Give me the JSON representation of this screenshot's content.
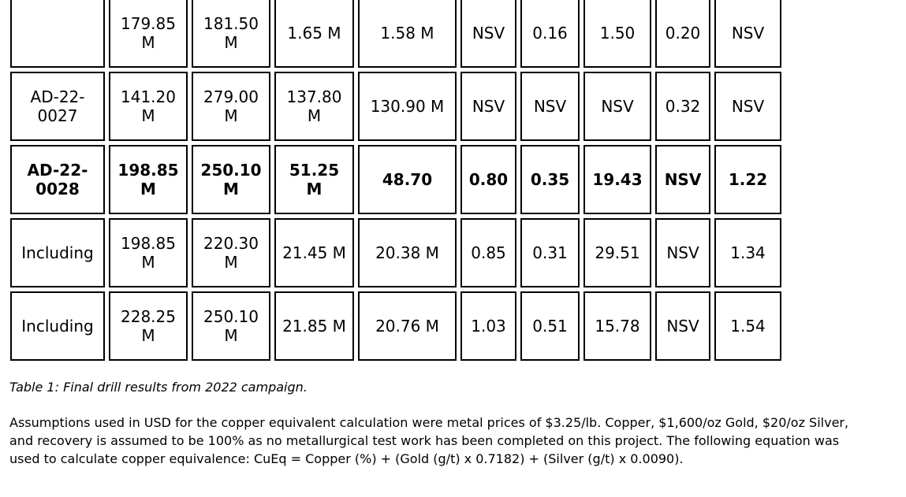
{
  "colors": {
    "text": "#000000",
    "border": "#000000",
    "background": "#ffffff"
  },
  "table": {
    "rows": [
      {
        "bold": false,
        "cells": [
          "",
          "179.85 M",
          "181.50 M",
          "1.65 M",
          "1.58 M",
          "NSV",
          "0.16",
          "1.50",
          "0.20",
          "NSV"
        ]
      },
      {
        "bold": false,
        "cells": [
          "AD-22-0027",
          "141.20 M",
          "279.00 M",
          "137.80 M",
          "130.90 M",
          "NSV",
          "NSV",
          "NSV",
          "0.32",
          "NSV"
        ]
      },
      {
        "bold": true,
        "cells": [
          "AD-22-0028",
          "198.85 M",
          "250.10 M",
          "51.25 M",
          "48.70",
          "0.80",
          "0.35",
          "19.43",
          "NSV",
          "1.22"
        ]
      },
      {
        "bold": false,
        "cells": [
          "Including",
          "198.85 M",
          "220.30 M",
          "21.45 M",
          "20.38 M",
          "0.85",
          "0.31",
          "29.51",
          "NSV",
          "1.34"
        ]
      },
      {
        "bold": false,
        "cells": [
          "Including",
          "228.25 M",
          "250.10 M",
          "21.85 M",
          "20.76 M",
          "1.03",
          "0.51",
          "15.78",
          "NSV",
          "1.54"
        ]
      }
    ]
  },
  "caption": "Table 1: Final drill results from 2022 campaign.",
  "notes": "Assumptions used in USD for the copper equivalent calculation were metal prices of $3.25/lb. Copper, $1,600/oz Gold, $20/oz Silver, and recovery is assumed to be 100% as no metallurgical test work has been completed on this project. The following equation was used to calculate copper equivalence: CuEq = Copper (%) + (Gold (g/t) x 0.7182) + (Silver (g/t) x 0.0090)."
}
